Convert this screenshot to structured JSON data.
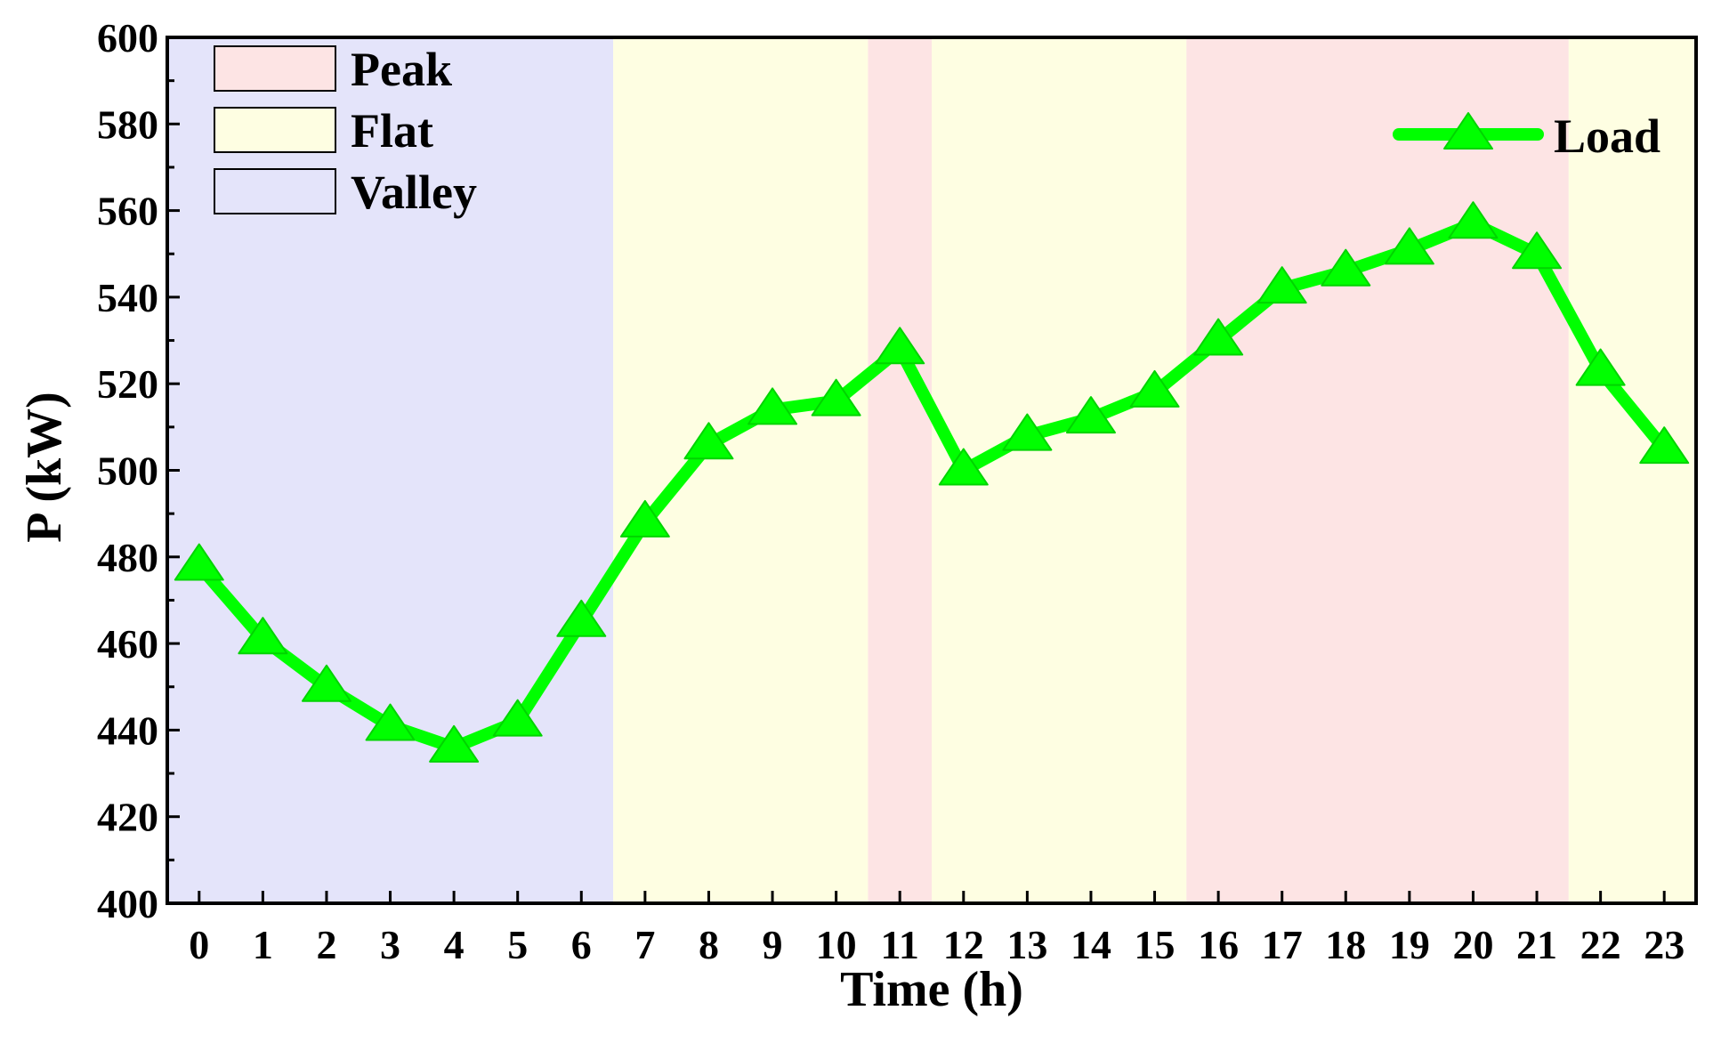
{
  "chart_data": {
    "type": "line",
    "xlabel": "Time (h)",
    "ylabel": "P (kW)",
    "ylim": [
      400,
      600
    ],
    "yticks": [
      400,
      420,
      440,
      460,
      480,
      500,
      520,
      540,
      560,
      580,
      600
    ],
    "xlim": [
      -0.5,
      23.5
    ],
    "x": [
      0,
      1,
      2,
      3,
      4,
      5,
      6,
      7,
      8,
      9,
      10,
      11,
      12,
      13,
      14,
      15,
      16,
      17,
      18,
      19,
      20,
      21,
      22,
      23
    ],
    "x_labels": [
      "0",
      "1",
      "2",
      "3",
      "4",
      "5",
      "6",
      "7",
      "8",
      "9",
      "10",
      "11",
      "12",
      "13",
      "14",
      "15",
      "16",
      "17",
      "18",
      "19",
      "20",
      "21",
      "22",
      "23"
    ],
    "series": [
      {
        "name": "Load",
        "color": "#00ff00",
        "marker": "triangle-up",
        "values": [
          478,
          461,
          450,
          441,
          436,
          442,
          465,
          488,
          506,
          514,
          516,
          528,
          500,
          508,
          512,
          518,
          530,
          542,
          546,
          551,
          557,
          550,
          523,
          505
        ]
      }
    ],
    "bands": [
      {
        "period": "Valley",
        "from": -0.5,
        "to": 6.5
      },
      {
        "period": "Flat",
        "from": 6.5,
        "to": 10.5
      },
      {
        "period": "Peak",
        "from": 10.5,
        "to": 11.5
      },
      {
        "period": "Flat",
        "from": 11.5,
        "to": 15.5
      },
      {
        "period": "Peak",
        "from": 15.5,
        "to": 21.5
      },
      {
        "period": "Flat",
        "from": 21.5,
        "to": 23.5
      }
    ],
    "period_legend": [
      {
        "label": "Peak",
        "color": "#fde4e4"
      },
      {
        "label": "Flat",
        "color": "#fefee2"
      },
      {
        "label": "Valley",
        "color": "#e4e4fa"
      }
    ],
    "period_legend_placement": "top-left",
    "series_legend_placement": "top-right",
    "grid": false
  }
}
